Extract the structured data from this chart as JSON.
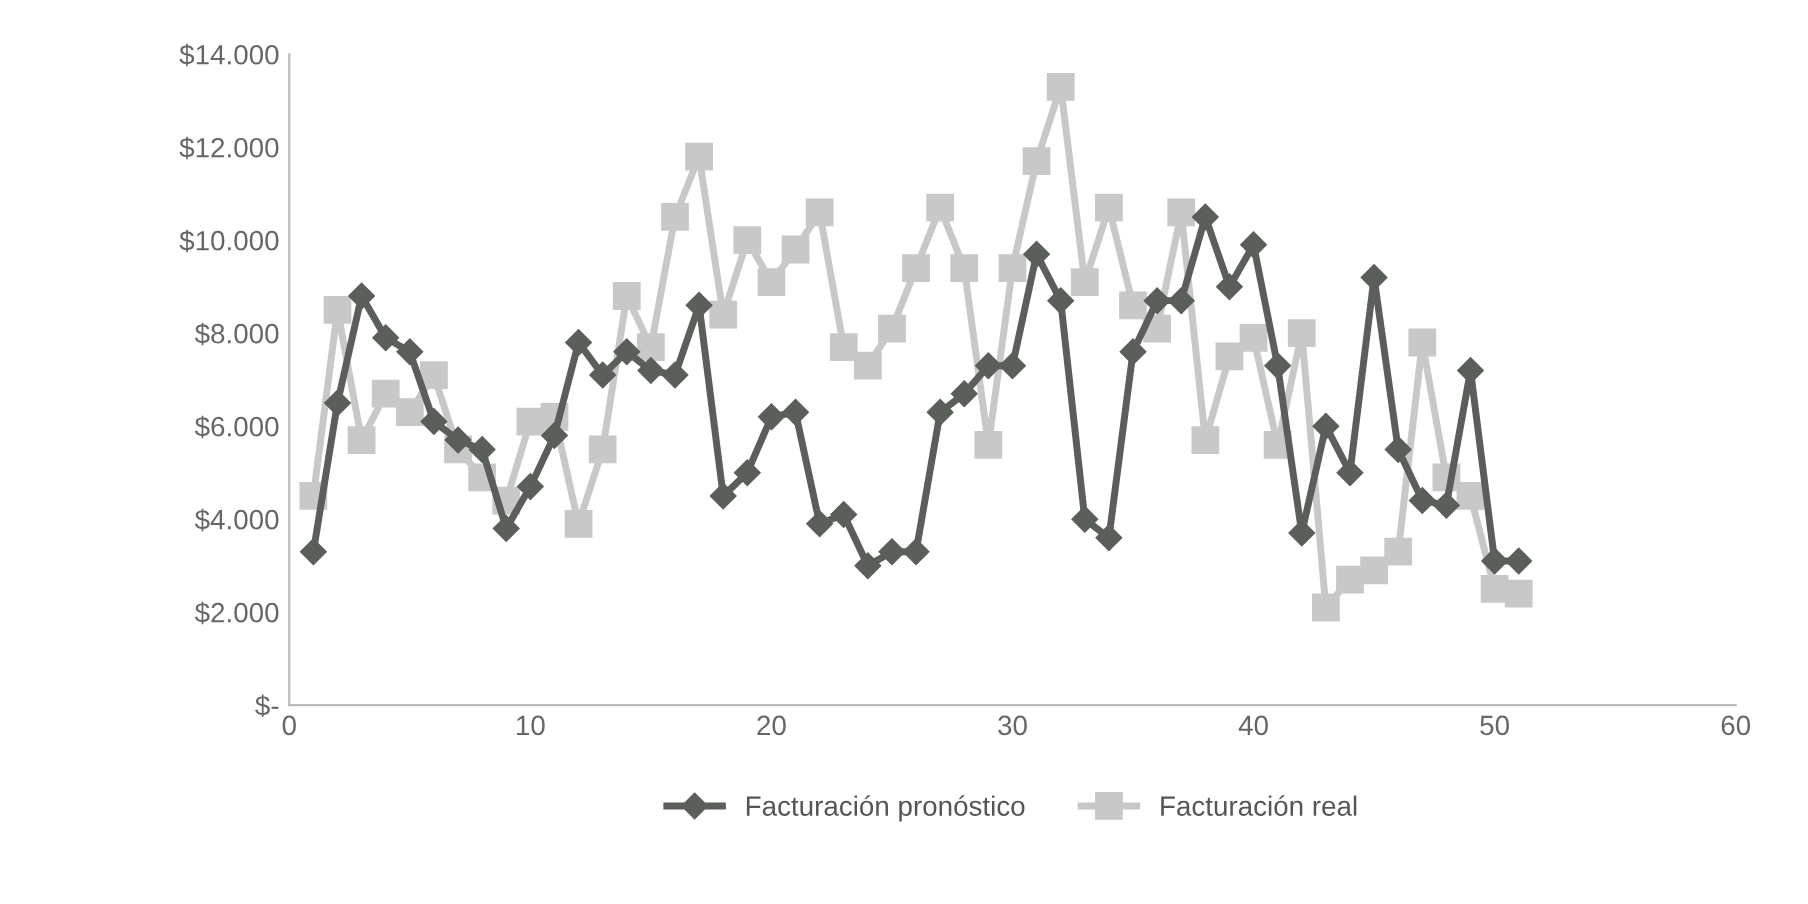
{
  "chart_data": {
    "type": "line",
    "legend": "bottom",
    "grid": false,
    "x": [
      1,
      2,
      3,
      4,
      5,
      6,
      7,
      8,
      9,
      10,
      11,
      12,
      13,
      14,
      15,
      16,
      17,
      18,
      19,
      20,
      21,
      22,
      23,
      24,
      25,
      26,
      27,
      28,
      29,
      30,
      31,
      32,
      33,
      34,
      35,
      36,
      37,
      38,
      39,
      40,
      41,
      42,
      43,
      44,
      45,
      46,
      47,
      48,
      49,
      50,
      51
    ],
    "series": [
      {
        "name": "Facturación pronóstico",
        "color": "#5a5f5a",
        "marker": "diamond",
        "values": [
          3300,
          6500,
          8800,
          7900,
          7600,
          6100,
          5700,
          5500,
          3800,
          4700,
          5800,
          7800,
          7100,
          7600,
          7200,
          7100,
          8600,
          4500,
          5000,
          6200,
          6300,
          3900,
          4100,
          3000,
          3300,
          3300,
          6300,
          6700,
          7300,
          7300,
          9700,
          8700,
          4000,
          3600,
          7600,
          8700,
          8700,
          10500,
          9000,
          9900,
          7300,
          3700,
          6000,
          5000,
          9200,
          5500,
          4400,
          4300,
          7200,
          3100,
          3100
        ]
      },
      {
        "name": "Facturación real",
        "color": "#c8c8c8",
        "marker": "square",
        "values": [
          4500,
          8500,
          5700,
          6700,
          6300,
          7100,
          5500,
          4900,
          4400,
          6100,
          6200,
          3900,
          5500,
          8800,
          7700,
          10500,
          11800,
          8400,
          10000,
          9100,
          9800,
          10600,
          7700,
          7300,
          8100,
          9400,
          10700,
          9400,
          5600,
          9400,
          11700,
          13300,
          9100,
          10700,
          8600,
          8100,
          10600,
          5700,
          7500,
          7900,
          5600,
          8000,
          2100,
          2700,
          2900,
          3300,
          7800,
          4900,
          4500,
          2500,
          2400
        ]
      }
    ],
    "xlim": [
      0,
      60
    ],
    "xticks": [
      0,
      10,
      20,
      30,
      40,
      50,
      60
    ],
    "ylim": [
      0,
      14000
    ],
    "yticks": [
      {
        "value": 0,
        "label": "$-"
      },
      {
        "value": 2000,
        "label": "$2.000"
      },
      {
        "value": 4000,
        "label": "$4.000"
      },
      {
        "value": 6000,
        "label": "$6.000"
      },
      {
        "value": 8000,
        "label": "$8.000"
      },
      {
        "value": 10000,
        "label": "$10.000"
      },
      {
        "value": 12000,
        "label": "$12.000"
      },
      {
        "value": 14000,
        "label": "$14.000"
      }
    ]
  }
}
